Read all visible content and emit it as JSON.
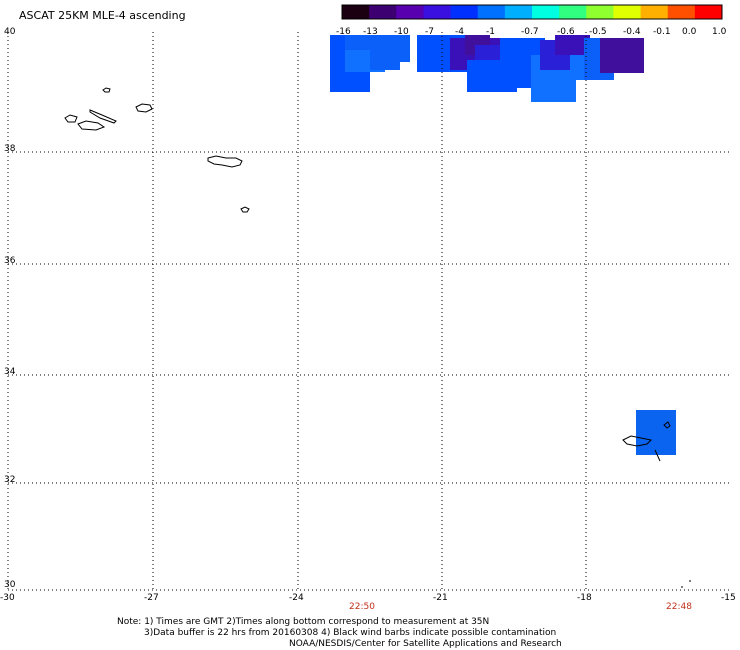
{
  "title": "ASCAT 25KM MLE-4 ascending",
  "colorbar": {
    "labels": [
      "-16",
      "-13",
      "-10",
      "-7",
      "-4",
      "-1",
      "-0.7",
      "-0.6",
      "-0.5",
      "-0.4",
      "-0.1",
      "0.0",
      "1.0"
    ],
    "colors": [
      "#1a0010",
      "#3c0070",
      "#5800b0",
      "#3a10e0",
      "#0030ff",
      "#0070ff",
      "#00b0ff",
      "#00ffe0",
      "#30ff80",
      "#90ff30",
      "#e0ff00",
      "#ffb000",
      "#ff5000",
      "#ff0000"
    ]
  },
  "map": {
    "lat_labels": [
      "40",
      "38",
      "36",
      "34",
      "32",
      "30"
    ],
    "lon_labels": [
      "-30",
      "-27",
      "-24",
      "-21",
      "-18",
      "-15"
    ],
    "time_labels": [
      "22:50",
      "22:48"
    ],
    "cell_colors": {
      "blue": "#0050ff",
      "mid_blue": "#0a60f8",
      "light_blue": "#1070ff",
      "violet": "#2a20d8",
      "purple": "#3a10b8",
      "deep_purple": "#40109c",
      "madeira": "#0a64f0"
    }
  },
  "notes": {
    "line1": "Note: 1) Times are GMT 2)Times along bottom correspond to measurement at 35N",
    "line2": "3)Data buffer is 22 hrs from 20160308 4) Black wind barbs indicate possible contamination",
    "line3": "NOAA/NESDIS/Center for Satellite Applications and Research"
  }
}
